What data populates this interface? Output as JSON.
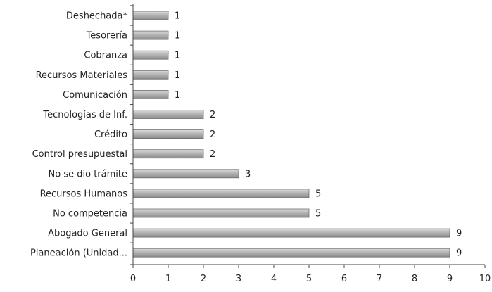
{
  "chart_data": {
    "type": "bar",
    "orientation": "horizontal",
    "categories": [
      "Deshechada*",
      "Tesorería",
      "Cobranza",
      "Recursos Materiales",
      "Comunicación",
      "Tecnologías de Inf.",
      "Crédito",
      "Control presupuestal",
      "No se dio trámite",
      "Recursos Humanos",
      "No competencia",
      "Abogado General",
      "Planeación (Unidad..."
    ],
    "values": [
      1,
      1,
      1,
      1,
      1,
      2,
      2,
      2,
      3,
      5,
      5,
      9,
      9
    ],
    "data_labels": [
      "1",
      "1",
      "1",
      "1",
      "1",
      "2",
      "2",
      "2",
      "3",
      "5",
      "5",
      "9",
      "9"
    ],
    "xlim": [
      0,
      10
    ],
    "x_ticks": [
      "0",
      "1",
      "2",
      "3",
      "4",
      "5",
      "6",
      "7",
      "8",
      "9",
      "10"
    ],
    "bar_color": "#a8a8a8",
    "grid": false,
    "legend": "none",
    "title": "",
    "xlabel": "",
    "ylabel": ""
  }
}
